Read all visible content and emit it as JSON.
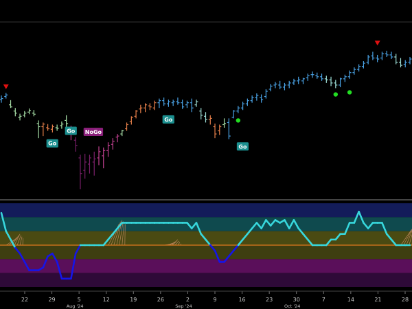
{
  "chart_data": {
    "type": "bar",
    "subtype": "ohlc-with-oscillator",
    "title": "",
    "xlabel": "",
    "ylabel": "",
    "x_day_labels": [
      "22",
      "29",
      "5",
      "12",
      "19",
      "26",
      "2",
      "9",
      "16",
      "23",
      "30",
      "7",
      "14",
      "21",
      "28"
    ],
    "x_month_labels": [
      {
        "text": "Aug '24",
        "under": "5"
      },
      {
        "text": "Sep '24",
        "under": "2"
      },
      {
        "text": "Oct '24",
        "under": "30"
      }
    ],
    "colors": {
      "background": "#000000",
      "strong_go": "#4aa3e6",
      "weak_go": "#9fe0d8",
      "weak_nogo": "#e8804a",
      "strong_nogo": "#c04090",
      "deep_nogo": "#7a1f6a",
      "neutral": "#a8e0a8",
      "oscillator_positive": "#37d7dc",
      "oscillator_negative": "#1515e8",
      "zero_line": "#e07a1e",
      "go_label_bg": "#1b8f8f",
      "nogo_label_bg": "#8a1f7a",
      "arrow": "#e01010",
      "dot": "#22dd22"
    },
    "price_series": {
      "name": "",
      "bars": [
        {
          "o": 15.6,
          "h": 16.4,
          "l": 15.0,
          "c": 15.8,
          "color": "strong_go"
        },
        {
          "o": 16.2,
          "h": 16.9,
          "l": 15.8,
          "c": 16.5,
          "color": "strong_go"
        },
        {
          "o": 14.6,
          "h": 15.5,
          "l": 14.0,
          "c": 14.2,
          "color": "neutral"
        },
        {
          "o": 13.4,
          "h": 14.0,
          "l": 12.4,
          "c": 13.0,
          "color": "neutral"
        },
        {
          "o": 12.2,
          "h": 12.9,
          "l": 11.6,
          "c": 12.4,
          "color": "neutral"
        },
        {
          "o": 12.6,
          "h": 13.4,
          "l": 12.2,
          "c": 13.0,
          "color": "neutral"
        },
        {
          "o": 13.2,
          "h": 13.9,
          "l": 12.8,
          "c": 13.5,
          "color": "neutral"
        },
        {
          "o": 13.0,
          "h": 13.6,
          "l": 12.4,
          "c": 12.8,
          "color": "neutral"
        },
        {
          "o": 11.0,
          "h": 11.6,
          "l": 8.2,
          "c": 10.4,
          "color": "neutral"
        },
        {
          "o": 10.4,
          "h": 11.2,
          "l": 8.6,
          "c": 10.9,
          "color": "weak_nogo"
        },
        {
          "o": 10.2,
          "h": 10.9,
          "l": 9.6,
          "c": 10.0,
          "color": "weak_nogo"
        },
        {
          "o": 9.9,
          "h": 10.8,
          "l": 9.3,
          "c": 10.4,
          "color": "weak_nogo"
        },
        {
          "o": 10.2,
          "h": 10.8,
          "l": 9.6,
          "c": 10.1,
          "color": "neutral"
        },
        {
          "o": 10.6,
          "h": 11.4,
          "l": 10.0,
          "c": 10.9,
          "color": "neutral"
        },
        {
          "o": 11.6,
          "h": 12.6,
          "l": 9.4,
          "c": 11.0,
          "color": "neutral"
        },
        {
          "o": 10.0,
          "h": 10.6,
          "l": 7.8,
          "c": 9.0,
          "color": "strong_nogo"
        },
        {
          "o": 7.8,
          "h": 8.4,
          "l": 5.6,
          "c": 6.8,
          "color": "deep_nogo"
        },
        {
          "o": 4.4,
          "h": 5.0,
          "l": -1.6,
          "c": 1.4,
          "color": "deep_nogo"
        },
        {
          "o": 2.0,
          "h": 5.2,
          "l": 0.4,
          "c": 3.6,
          "color": "deep_nogo"
        },
        {
          "o": 3.2,
          "h": 5.0,
          "l": 1.4,
          "c": 4.4,
          "color": "deep_nogo"
        },
        {
          "o": 3.6,
          "h": 5.6,
          "l": 1.0,
          "c": 4.2,
          "color": "deep_nogo"
        },
        {
          "o": 4.4,
          "h": 6.6,
          "l": 3.0,
          "c": 5.6,
          "color": "strong_nogo"
        },
        {
          "o": 4.8,
          "h": 6.4,
          "l": 2.4,
          "c": 5.8,
          "color": "strong_nogo"
        },
        {
          "o": 5.8,
          "h": 7.4,
          "l": 4.6,
          "c": 6.8,
          "color": "strong_nogo"
        },
        {
          "o": 7.0,
          "h": 8.2,
          "l": 6.0,
          "c": 7.6,
          "color": "strong_nogo"
        },
        {
          "o": 8.4,
          "h": 9.0,
          "l": 7.4,
          "c": 8.6,
          "color": "strong_nogo"
        },
        {
          "o": 9.0,
          "h": 9.8,
          "l": 8.6,
          "c": 9.6,
          "color": "neutral"
        },
        {
          "o": 10.0,
          "h": 11.2,
          "l": 9.6,
          "c": 10.8,
          "color": "weak_nogo"
        },
        {
          "o": 11.4,
          "h": 12.4,
          "l": 10.8,
          "c": 12.2,
          "color": "weak_nogo"
        },
        {
          "o": 12.4,
          "h": 13.6,
          "l": 12.0,
          "c": 13.4,
          "color": "weak_nogo"
        },
        {
          "o": 13.8,
          "h": 14.6,
          "l": 13.0,
          "c": 14.0,
          "color": "weak_nogo"
        },
        {
          "o": 14.0,
          "h": 14.9,
          "l": 13.2,
          "c": 14.6,
          "color": "weak_nogo"
        },
        {
          "o": 14.4,
          "h": 14.9,
          "l": 13.6,
          "c": 14.2,
          "color": "weak_nogo"
        },
        {
          "o": 14.0,
          "h": 15.4,
          "l": 13.6,
          "c": 15.0,
          "color": "weak_nogo"
        },
        {
          "o": 15.0,
          "h": 15.8,
          "l": 14.0,
          "c": 15.4,
          "color": "strong_go"
        },
        {
          "o": 15.4,
          "h": 16.0,
          "l": 14.4,
          "c": 14.8,
          "color": "strong_go"
        },
        {
          "o": 14.8,
          "h": 15.6,
          "l": 14.2,
          "c": 15.2,
          "color": "strong_go"
        },
        {
          "o": 15.0,
          "h": 15.6,
          "l": 14.4,
          "c": 15.2,
          "color": "strong_go"
        },
        {
          "o": 15.2,
          "h": 16.0,
          "l": 14.6,
          "c": 15.0,
          "color": "strong_go"
        },
        {
          "o": 15.0,
          "h": 15.6,
          "l": 13.8,
          "c": 14.2,
          "color": "strong_go"
        },
        {
          "o": 14.6,
          "h": 15.4,
          "l": 14.0,
          "c": 15.0,
          "color": "strong_go"
        },
        {
          "o": 15.0,
          "h": 15.8,
          "l": 13.2,
          "c": 14.0,
          "color": "strong_go"
        },
        {
          "o": 14.6,
          "h": 15.6,
          "l": 14.2,
          "c": 15.2,
          "color": "weak_go"
        },
        {
          "o": 13.4,
          "h": 14.0,
          "l": 11.8,
          "c": 12.6,
          "color": "weak_go"
        },
        {
          "o": 12.4,
          "h": 13.2,
          "l": 11.2,
          "c": 11.8,
          "color": "weak_go"
        },
        {
          "o": 11.8,
          "h": 12.6,
          "l": 10.8,
          "c": 12.0,
          "color": "weak_nogo"
        },
        {
          "o": 10.4,
          "h": 11.0,
          "l": 8.2,
          "c": 9.0,
          "color": "weak_nogo"
        },
        {
          "o": 9.6,
          "h": 10.8,
          "l": 8.8,
          "c": 10.4,
          "color": "weak_nogo"
        },
        {
          "o": 10.8,
          "h": 12.0,
          "l": 10.2,
          "c": 11.0,
          "color": "neutral"
        },
        {
          "o": 11.2,
          "h": 12.0,
          "l": 8.0,
          "c": 8.6,
          "color": "strong_go"
        },
        {
          "o": 12.2,
          "h": 13.6,
          "l": 12.0,
          "c": 13.4,
          "color": "strong_go"
        },
        {
          "o": 13.4,
          "h": 14.4,
          "l": 13.0,
          "c": 14.0,
          "color": "strong_go"
        },
        {
          "o": 14.0,
          "h": 15.2,
          "l": 13.6,
          "c": 14.8,
          "color": "strong_go"
        },
        {
          "o": 14.8,
          "h": 15.8,
          "l": 14.4,
          "c": 15.4,
          "color": "strong_go"
        },
        {
          "o": 15.4,
          "h": 16.4,
          "l": 15.0,
          "c": 16.0,
          "color": "strong_go"
        },
        {
          "o": 16.0,
          "h": 16.8,
          "l": 15.4,
          "c": 16.4,
          "color": "strong_go"
        },
        {
          "o": 16.0,
          "h": 16.6,
          "l": 15.0,
          "c": 15.6,
          "color": "strong_go"
        },
        {
          "o": 16.2,
          "h": 17.6,
          "l": 15.8,
          "c": 17.2,
          "color": "strong_go"
        },
        {
          "o": 17.6,
          "h": 18.6,
          "l": 17.2,
          "c": 18.2,
          "color": "strong_go"
        },
        {
          "o": 18.4,
          "h": 19.0,
          "l": 17.8,
          "c": 18.6,
          "color": "strong_go"
        },
        {
          "o": 18.4,
          "h": 19.2,
          "l": 17.6,
          "c": 18.0,
          "color": "strong_go"
        },
        {
          "o": 18.0,
          "h": 18.8,
          "l": 17.4,
          "c": 18.4,
          "color": "strong_go"
        },
        {
          "o": 18.4,
          "h": 19.2,
          "l": 17.8,
          "c": 18.8,
          "color": "strong_go"
        },
        {
          "o": 18.8,
          "h": 19.6,
          "l": 18.4,
          "c": 19.2,
          "color": "strong_go"
        },
        {
          "o": 19.2,
          "h": 20.0,
          "l": 18.6,
          "c": 19.4,
          "color": "strong_go"
        },
        {
          "o": 19.2,
          "h": 19.8,
          "l": 18.6,
          "c": 19.6,
          "color": "strong_go"
        },
        {
          "o": 19.8,
          "h": 20.6,
          "l": 19.2,
          "c": 20.2,
          "color": "strong_go"
        },
        {
          "o": 20.4,
          "h": 21.0,
          "l": 19.8,
          "c": 20.4,
          "color": "strong_go"
        },
        {
          "o": 20.2,
          "h": 20.8,
          "l": 19.6,
          "c": 20.0,
          "color": "strong_go"
        },
        {
          "o": 20.0,
          "h": 20.6,
          "l": 19.2,
          "c": 19.6,
          "color": "strong_go"
        },
        {
          "o": 19.6,
          "h": 20.2,
          "l": 18.8,
          "c": 19.4,
          "color": "weak_go"
        },
        {
          "o": 19.4,
          "h": 20.0,
          "l": 18.2,
          "c": 18.8,
          "color": "weak_go"
        },
        {
          "o": 18.8,
          "h": 19.4,
          "l": 17.8,
          "c": 18.4,
          "color": "weak_go"
        },
        {
          "o": 18.4,
          "h": 19.8,
          "l": 18.0,
          "c": 19.6,
          "color": "strong_go"
        },
        {
          "o": 19.6,
          "h": 20.4,
          "l": 19.0,
          "c": 20.0,
          "color": "strong_go"
        },
        {
          "o": 20.0,
          "h": 21.2,
          "l": 19.6,
          "c": 20.8,
          "color": "strong_go"
        },
        {
          "o": 20.8,
          "h": 21.8,
          "l": 20.4,
          "c": 21.4,
          "color": "strong_go"
        },
        {
          "o": 21.4,
          "h": 22.4,
          "l": 21.0,
          "c": 22.0,
          "color": "strong_go"
        },
        {
          "o": 22.0,
          "h": 23.0,
          "l": 21.6,
          "c": 22.6,
          "color": "strong_go"
        },
        {
          "o": 22.8,
          "h": 24.2,
          "l": 22.4,
          "c": 23.8,
          "color": "strong_go"
        },
        {
          "o": 24.0,
          "h": 24.8,
          "l": 23.2,
          "c": 23.6,
          "color": "strong_go"
        },
        {
          "o": 23.6,
          "h": 24.2,
          "l": 22.8,
          "c": 23.4,
          "color": "strong_go"
        },
        {
          "o": 23.6,
          "h": 24.8,
          "l": 23.2,
          "c": 24.4,
          "color": "strong_go"
        },
        {
          "o": 24.4,
          "h": 25.0,
          "l": 23.8,
          "c": 24.2,
          "color": "strong_go"
        },
        {
          "o": 24.2,
          "h": 24.8,
          "l": 23.4,
          "c": 23.8,
          "color": "strong_go"
        },
        {
          "o": 23.8,
          "h": 24.4,
          "l": 22.4,
          "c": 22.8,
          "color": "weak_go"
        },
        {
          "o": 22.8,
          "h": 23.6,
          "l": 21.8,
          "c": 22.2,
          "color": "weak_go"
        },
        {
          "o": 22.4,
          "h": 23.2,
          "l": 21.8,
          "c": 22.8,
          "color": "strong_go"
        },
        {
          "o": 22.8,
          "h": 23.8,
          "l": 22.4,
          "c": 23.4,
          "color": "strong_go"
        }
      ]
    },
    "price_signals": [
      {
        "type": "arrow-down",
        "bar": 1,
        "price": 18.0
      },
      {
        "type": "arrow-down",
        "bar": 81,
        "price": 26.4
      },
      {
        "type": "dot",
        "bar": 51,
        "price": 11.6
      },
      {
        "type": "dot",
        "bar": 72,
        "price": 16.6
      },
      {
        "type": "dot",
        "bar": 75,
        "price": 17.0
      }
    ],
    "labels": [
      {
        "text": "Go",
        "bar": 10,
        "price": 7.2,
        "style": "go"
      },
      {
        "text": "Go",
        "bar": 14,
        "price": 9.6,
        "style": "go"
      },
      {
        "text": "NoGo",
        "bar": 18,
        "price": 9.4,
        "style": "nogo"
      },
      {
        "text": "Go",
        "bar": 35,
        "price": 11.8,
        "style": "go"
      },
      {
        "text": "Go",
        "bar": 51,
        "price": 6.6,
        "style": "go"
      }
    ],
    "price_range": [
      -3,
      30
    ],
    "oscillator": {
      "name": "",
      "zero": 0,
      "range": [
        -6,
        6
      ],
      "bands": [
        {
          "from": 4.0,
          "to": 6.0,
          "color": "#131c5a"
        },
        {
          "from": 2.0,
          "to": 4.0,
          "color": "#0f4a4e"
        },
        {
          "from": 0.0,
          "to": 2.0,
          "color": "#4a4a12"
        },
        {
          "from": -2.0,
          "to": 0.0,
          "color": "#3e3e10"
        },
        {
          "from": -4.0,
          "to": -2.0,
          "color": "#5a0f5a"
        },
        {
          "from": -6.0,
          "to": -4.0,
          "color": "#2e0a38"
        }
      ],
      "values": [
        4.6,
        2.0,
        0.8,
        -0.4,
        -1.2,
        -2.4,
        -3.6,
        -3.6,
        -3.6,
        -3.2,
        -1.6,
        -1.2,
        -2.4,
        -4.8,
        -4.8,
        -4.8,
        -1.2,
        0.0,
        0.0,
        0.0,
        0.0,
        0.0,
        0.0,
        0.8,
        1.6,
        2.4,
        3.2,
        3.2,
        3.2,
        3.2,
        3.2,
        3.2,
        3.2,
        3.2,
        3.2,
        3.2,
        3.2,
        3.2,
        3.2,
        3.2,
        3.2,
        2.4,
        3.2,
        1.6,
        0.8,
        0.0,
        -0.8,
        -2.4,
        -2.4,
        -1.6,
        -0.8,
        0.0,
        0.8,
        1.6,
        2.4,
        3.2,
        2.4,
        3.6,
        2.8,
        3.6,
        3.2,
        3.6,
        2.4,
        3.6,
        2.4,
        1.6,
        0.8,
        0.0,
        0.0,
        0.0,
        0.0,
        0.8,
        0.8,
        1.6,
        1.6,
        3.2,
        3.2,
        4.8,
        3.2,
        2.4,
        3.2,
        3.2,
        3.2,
        1.6,
        0.8,
        0.0,
        0.0,
        0.0,
        0.0
      ],
      "lighter_peaks": [
        {
          "bar": 4,
          "height": 1.6
        },
        {
          "bar": 26,
          "height": 3.6
        },
        {
          "bar": 38,
          "height": 0.8
        },
        {
          "bar": 89,
          "height": 2.8
        }
      ]
    }
  }
}
